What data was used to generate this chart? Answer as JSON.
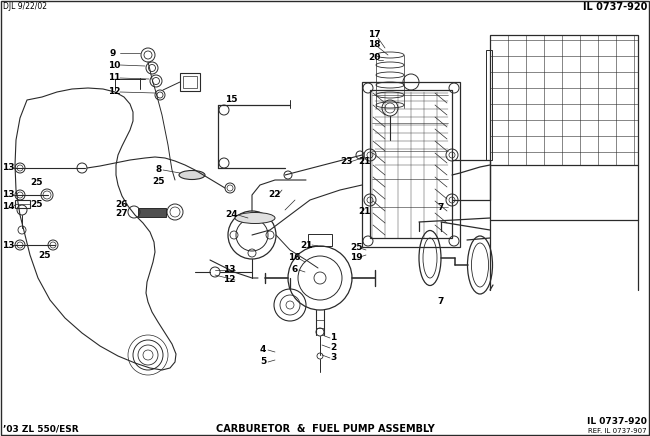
{
  "top_left_text": "DJL 9/22/02",
  "top_right_text": "IL 0737-920",
  "bottom_left_text": "’03 ZL 550/ESR",
  "bottom_center_text": "CARBURETOR  &  FUEL PUMP ASSEMBLY",
  "bottom_right_text1": "IL 0737-920",
  "bottom_right_text2": "REF. IL 0737-907",
  "bg_color": "#ffffff",
  "line_color": "#2a2a2a",
  "text_color": "#000000",
  "fig_width": 6.5,
  "fig_height": 4.36,
  "dpi": 100
}
